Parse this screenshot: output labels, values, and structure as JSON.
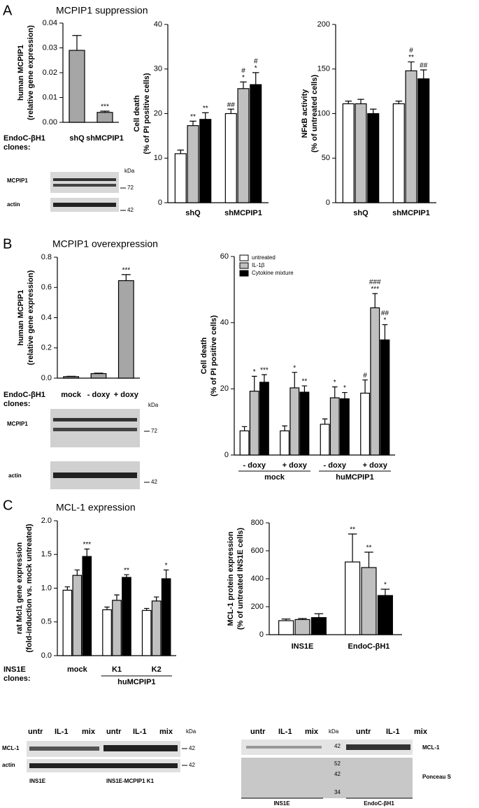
{
  "panels": [
    {
      "letter": "A",
      "title": "MCPIP1 suppression"
    },
    {
      "letter": "B",
      "title": "MCPIP1 overexpression"
    },
    {
      "letter": "C",
      "title": "MCL-1 expression"
    }
  ],
  "chart_data": [
    {
      "type": "bar",
      "y_label": [
        "human MCPIP1",
        "(relative gene expression)"
      ],
      "x_label": [
        "EndoC-βH1",
        "clones:"
      ],
      "categories": [
        "shQ",
        "shMCPIP1"
      ],
      "values": [
        0.029,
        0.004
      ],
      "errors": [
        0.006,
        0.0005
      ],
      "color": "#a6a6a6",
      "annotations": [
        null,
        [
          "***"
        ]
      ],
      "ylim": [
        0,
        0.04
      ],
      "yticks": [
        {
          "value": 0,
          "label": "0.00"
        },
        {
          "value": 0.01,
          "label": "0.01"
        },
        {
          "value": 0.02,
          "label": "0.02"
        },
        {
          "value": 0.03,
          "label": "0.03"
        },
        {
          "value": 0.04,
          "label": "0.04"
        }
      ]
    },
    {
      "type": "bar",
      "y_label": [
        "Cell death",
        "(% of PI positive cells)"
      ],
      "categories": [
        "shQ",
        "shMCPIP1"
      ],
      "series": [
        {
          "color": "#ffffff",
          "values": [
            11,
            20
          ],
          "errors": [
            0.8,
            1
          ],
          "annotations": [
            null,
            [
              "##"
            ]
          ]
        },
        {
          "color": "#c0c0c0",
          "values": [
            17.3,
            25.6
          ],
          "errors": [
            1,
            1.5
          ],
          "annotations": [
            [
              "**"
            ],
            [
              "#",
              "*"
            ]
          ]
        },
        {
          "color": "#000000",
          "values": [
            18.7,
            26.5
          ],
          "errors": [
            1.5,
            2.7
          ],
          "annotations": [
            [
              "**"
            ],
            [
              "#",
              "*"
            ]
          ]
        }
      ],
      "ylim": [
        0,
        40
      ],
      "yticks": [
        0,
        10,
        20,
        30,
        40
      ]
    },
    {
      "type": "bar",
      "y_label": [
        "NFκB activity",
        "(% of untreated cells)"
      ],
      "categories": [
        "shQ",
        "shMCPIP1"
      ],
      "series": [
        {
          "color": "#ffffff",
          "values": [
            111,
            111
          ],
          "errors": [
            3,
            3
          ],
          "annotations": [
            null,
            null
          ]
        },
        {
          "color": "#c0c0c0",
          "values": [
            111,
            148
          ],
          "errors": [
            5,
            10
          ],
          "annotations": [
            null,
            [
              "#",
              "**"
            ]
          ]
        },
        {
          "color": "#000000",
          "values": [
            100,
            139
          ],
          "errors": [
            5,
            10
          ],
          "annotations": [
            null,
            [
              "##"
            ]
          ]
        }
      ],
      "ylim": [
        0,
        200
      ],
      "yticks": [
        0,
        50,
        100,
        150,
        200
      ]
    },
    {
      "type": "bar",
      "y_label": [
        "human MCPIP1",
        "(relative gene expression)"
      ],
      "x_label": [
        "EndoC-βH1",
        "clones:"
      ],
      "categories": [
        "mock",
        "- doxy",
        "+ doxy"
      ],
      "values": [
        0.01,
        0.03,
        0.645
      ],
      "errors": [
        0.002,
        0.003,
        0.04
      ],
      "color": "#a6a6a6",
      "annotations": [
        null,
        null,
        [
          "***"
        ]
      ],
      "ylim": [
        0,
        0.8
      ],
      "yticks": [
        {
          "value": 0,
          "label": "0.0"
        },
        {
          "value": 0.2,
          "label": "0.2"
        },
        {
          "value": 0.4,
          "label": "0.4"
        },
        {
          "value": 0.6,
          "label": "0.6"
        },
        {
          "value": 0.8,
          "label": "0.8"
        }
      ]
    },
    {
      "type": "bar",
      "y_label": [
        "Cell death",
        "(% of PI positive cells)"
      ],
      "categories": [
        "- doxy",
        "+ doxy",
        "- doxy",
        "+ doxy"
      ],
      "group_labels": [
        "mock",
        "huMCPIP1"
      ],
      "legend": "upper left",
      "series": [
        {
          "name": "untreated",
          "color": "#ffffff",
          "values": [
            7.3,
            7.3,
            9.3,
            18.7
          ],
          "errors": [
            1.3,
            1.5,
            1.6,
            4
          ],
          "annotations": [
            null,
            null,
            null,
            [
              "#"
            ]
          ]
        },
        {
          "name": "IL-1β",
          "color": "#c0c0c0",
          "values": [
            19.3,
            20.3,
            17.3,
            44.5
          ],
          "errors": [
            4.5,
            4.7,
            3.3,
            4.3
          ],
          "annotations": [
            [
              "*"
            ],
            [
              "*"
            ],
            [
              "*"
            ],
            [
              "###",
              "***"
            ]
          ]
        },
        {
          "name": "Cytokine mixture",
          "color": "#000000",
          "values": [
            22,
            19,
            17,
            34.8
          ],
          "errors": [
            2.3,
            1.9,
            1.9,
            4.6
          ],
          "annotations": [
            [
              "***"
            ],
            [
              "**"
            ],
            [
              "*"
            ],
            [
              "##",
              "*"
            ]
          ]
        }
      ],
      "ylim": [
        0,
        60
      ],
      "yticks": [
        0,
        20,
        40,
        60
      ]
    },
    {
      "type": "bar",
      "y_label": [
        "rat Mcl1 gene expression",
        "(fold-induction vs. mock untreated)"
      ],
      "x_label": [
        "INS1E",
        "clones:"
      ],
      "categories": [
        "mock",
        "K1",
        "K2"
      ],
      "group_labels": [
        "huMCPIP1"
      ],
      "series": [
        {
          "color": "#ffffff",
          "values": [
            0.97,
            0.68,
            0.67
          ],
          "errors": [
            0.05,
            0.04,
            0.03
          ],
          "annotations": [
            null,
            null,
            null
          ]
        },
        {
          "color": "#c0c0c0",
          "values": [
            1.19,
            0.82,
            0.81
          ],
          "errors": [
            0.08,
            0.08,
            0.06
          ],
          "annotations": [
            null,
            null,
            null
          ]
        },
        {
          "color": "#000000",
          "values": [
            1.47,
            1.16,
            1.14
          ],
          "errors": [
            0.11,
            0.04,
            0.13
          ],
          "annotations": [
            [
              "***"
            ],
            [
              "**"
            ],
            [
              "*"
            ]
          ]
        }
      ],
      "ylim": [
        0,
        2
      ],
      "yticks": [
        {
          "value": 0,
          "label": "0.0"
        },
        {
          "value": 0.5,
          "label": "0.5"
        },
        {
          "value": 1,
          "label": "1.0"
        },
        {
          "value": 1.5,
          "label": "1.5"
        },
        {
          "value": 2,
          "label": "2.0"
        }
      ]
    },
    {
      "type": "bar",
      "y_label": [
        "MCL-1 protein expression",
        "(% of untreated INS1E cells)"
      ],
      "categories": [
        "INS1E",
        "EndoC-βH1"
      ],
      "series": [
        {
          "color": "#ffffff",
          "values": [
            100,
            520
          ],
          "errors": [
            12,
            200
          ],
          "annotations": [
            null,
            [
              "**"
            ]
          ]
        },
        {
          "color": "#c0c0c0",
          "values": [
            108,
            480
          ],
          "errors": [
            8,
            110
          ],
          "annotations": [
            null,
            [
              "**"
            ]
          ]
        },
        {
          "color": "#000000",
          "values": [
            122,
            280
          ],
          "errors": [
            28,
            45
          ],
          "annotations": [
            null,
            [
              "*"
            ]
          ]
        }
      ],
      "ylim": [
        0,
        800
      ],
      "yticks": [
        0,
        200,
        400,
        600,
        800
      ]
    }
  ],
  "blots": [
    {
      "kda": "kDa",
      "rows": [
        "MCPIP1",
        "actin"
      ],
      "markers": [
        "72",
        "42"
      ]
    },
    {
      "kda": "kDa",
      "rows": [
        "MCPIP1",
        "actin"
      ],
      "markers": [
        "72",
        "42"
      ]
    },
    {
      "lanes": [
        "untr",
        "IL-1",
        "mix",
        "untr",
        "IL-1",
        "mix"
      ],
      "kda": "kDa",
      "rows": [
        "MCL-1",
        "actin"
      ],
      "markers": [
        "42",
        "42"
      ],
      "groups": [
        "INS1E",
        "INS1E-MCPIP1 K1"
      ]
    },
    {
      "lanes": [
        "untr",
        "IL-1",
        "mix",
        "untr",
        "IL-1",
        "mix"
      ],
      "kda": "kDa",
      "rows": [
        "MCL-1",
        "Ponceau S"
      ],
      "markers": [
        "42",
        "52",
        "42",
        "34"
      ],
      "groups": [
        "INS1E",
        "EndoC-βH1"
      ]
    }
  ]
}
